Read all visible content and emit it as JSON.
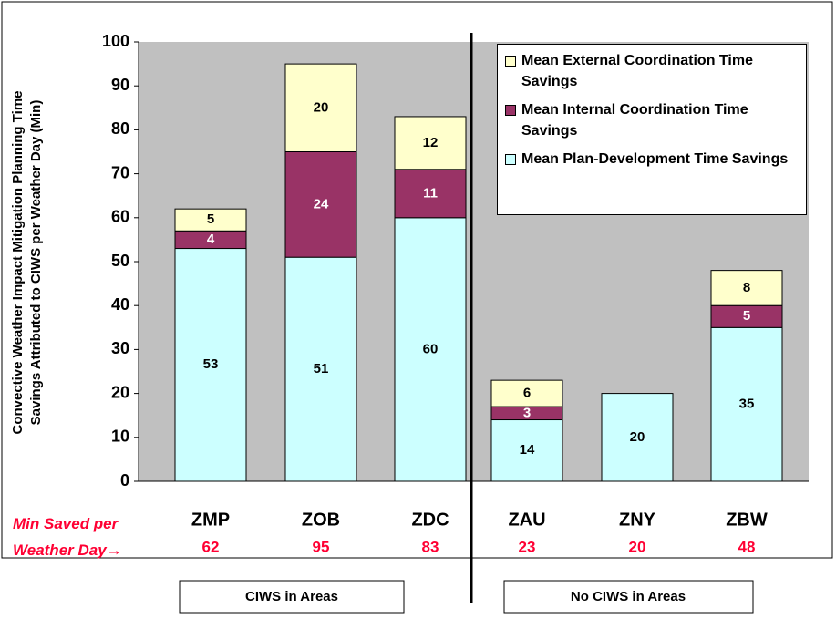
{
  "chart_data": {
    "type": "stacked_bar",
    "y_label": "Convective Weather Impact Mitigation Planning Time Savings Attributed to CIWS per Weather Day (Min)",
    "categories": [
      "ZMP",
      "ZOB",
      "ZDC",
      "ZAU",
      "ZNY",
      "ZBW"
    ],
    "series": [
      {
        "name": "Mean Plan-Development Time Savings",
        "color": "#ccffff",
        "values": [
          53,
          51,
          60,
          14,
          20,
          35
        ]
      },
      {
        "name": "Mean Internal Coordination Time Savings",
        "color": "#993366",
        "values": [
          4,
          24,
          11,
          3,
          null,
          5
        ]
      },
      {
        "name": "Mean External Coordination Time Savings",
        "color": "#ffffcc",
        "values": [
          5,
          20,
          12,
          6,
          null,
          8
        ]
      }
    ],
    "totals_label": "Min Saved per Weather Day→",
    "totals": [
      62,
      95,
      83,
      23,
      20,
      48
    ],
    "groups": [
      "CIWS in Areas",
      "No CIWS in Areas"
    ],
    "ylim": [
      0,
      100
    ],
    "yticks": [
      0,
      10,
      20,
      30,
      40,
      50,
      60,
      70,
      80,
      90,
      100
    ],
    "grid": false
  }
}
